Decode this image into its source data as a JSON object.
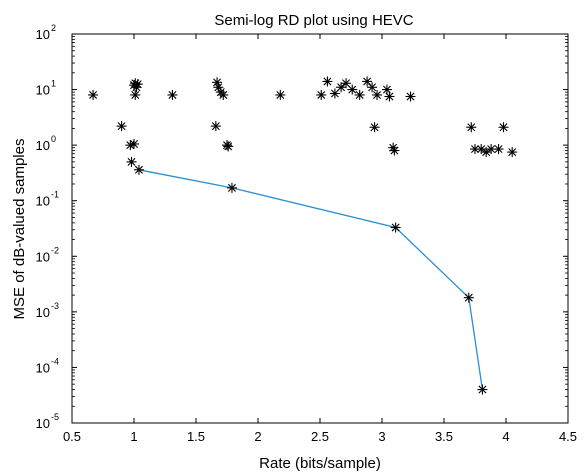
{
  "chart_data": {
    "type": "scatter",
    "title": "Semi-log RD plot using HEVC",
    "xlabel": "Rate (bits/sample)",
    "ylabel": "MSE of dB-valued samples",
    "xlim": [
      0.5,
      4.5
    ],
    "ylim": [
      1e-05,
      100
    ],
    "y_scale": "log",
    "grid": false,
    "x_ticks": [
      "0.5",
      "1",
      "1.5",
      "2",
      "2.5",
      "3",
      "3.5",
      "4",
      "4.5"
    ],
    "x_tick_values": [
      0.5,
      1,
      1.5,
      2,
      2.5,
      3,
      3.5,
      4,
      4.5
    ],
    "y_ticks": [
      {
        "value": 1e-05,
        "base": "10",
        "exp": "-5"
      },
      {
        "value": 0.0001,
        "base": "10",
        "exp": "-4"
      },
      {
        "value": 0.001,
        "base": "10",
        "exp": "-3"
      },
      {
        "value": 0.01,
        "base": "10",
        "exp": "-2"
      },
      {
        "value": 0.1,
        "base": "10",
        "exp": "-1"
      },
      {
        "value": 1,
        "base": "10",
        "exp": "0"
      },
      {
        "value": 10,
        "base": "10",
        "exp": "1"
      },
      {
        "value": 100,
        "base": "10",
        "exp": "2"
      }
    ],
    "series": [
      {
        "marker": "asterisk",
        "color": "#000000",
        "points": [
          [
            0.67,
            8.0
          ],
          [
            0.9,
            2.2
          ],
          [
            0.97,
            1.0
          ],
          [
            0.98,
            0.5
          ],
          [
            1.0,
            1.05
          ],
          [
            1.0,
            12.0
          ],
          [
            1.01,
            13.0
          ],
          [
            1.01,
            8.0
          ],
          [
            1.02,
            11.0
          ],
          [
            1.03,
            12.5
          ],
          [
            1.31,
            8.0
          ],
          [
            1.66,
            2.2
          ],
          [
            1.67,
            13.5
          ],
          [
            1.68,
            11.0
          ],
          [
            1.7,
            9.0
          ],
          [
            1.72,
            8.0
          ],
          [
            1.75,
            1.0
          ],
          [
            1.76,
            0.95
          ],
          [
            2.18,
            8.0
          ],
          [
            2.51,
            8.0
          ],
          [
            2.56,
            14.0
          ],
          [
            2.62,
            8.5
          ],
          [
            2.67,
            11.0
          ],
          [
            2.71,
            13.0
          ],
          [
            2.76,
            10.0
          ],
          [
            2.82,
            8.0
          ],
          [
            2.88,
            14.0
          ],
          [
            2.92,
            11.0
          ],
          [
            2.94,
            2.1
          ],
          [
            2.96,
            8.0
          ],
          [
            3.04,
            10.0
          ],
          [
            3.06,
            7.5
          ],
          [
            3.09,
            0.9
          ],
          [
            3.1,
            0.8
          ],
          [
            3.23,
            7.5
          ],
          [
            3.72,
            2.1
          ],
          [
            3.75,
            0.85
          ],
          [
            3.8,
            0.85
          ],
          [
            3.84,
            0.75
          ],
          [
            3.88,
            0.85
          ],
          [
            3.94,
            0.85
          ],
          [
            3.98,
            2.1
          ],
          [
            4.05,
            0.75
          ]
        ]
      },
      {
        "marker": "asterisk",
        "color": "#000000",
        "line_color": "#2a8fd0",
        "connected": true,
        "points": [
          [
            1.04,
            0.36
          ],
          [
            1.79,
            0.17
          ],
          [
            3.11,
            0.033
          ],
          [
            3.7,
            0.0018
          ],
          [
            3.81,
            4e-05
          ]
        ]
      }
    ]
  }
}
